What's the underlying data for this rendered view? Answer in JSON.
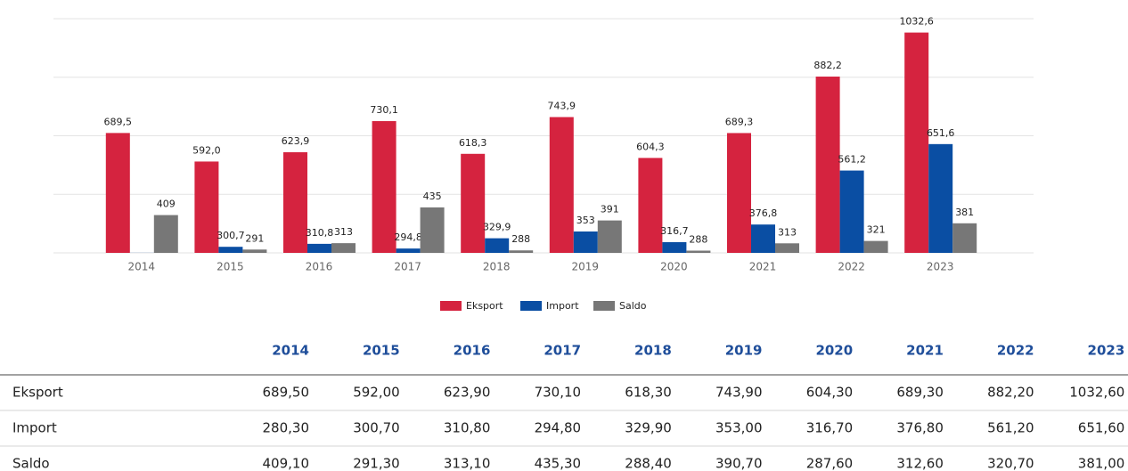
{
  "chart_data": {
    "type": "bar",
    "categories": [
      "2014",
      "2015",
      "2016",
      "2017",
      "2018",
      "2019",
      "2020",
      "2021",
      "2022",
      "2023"
    ],
    "series": [
      {
        "name": "Eksport",
        "color": "#d5233f",
        "values": [
          689.5,
          592.0,
          623.9,
          730.1,
          618.3,
          743.9,
          604.3,
          689.3,
          882.2,
          1032.6
        ],
        "value_labels": [
          "689,5",
          "592,0",
          "623,9",
          "730,1",
          "618,3",
          "743,9",
          "604,3",
          "689,3",
          "882,2",
          "1032,6"
        ]
      },
      {
        "name": "Import",
        "color": "#0a4ea3",
        "values": [
          280.3,
          300.7,
          310.8,
          294.8,
          329.9,
          353.0,
          316.7,
          376.8,
          561.2,
          651.6
        ],
        "value_labels": [
          null,
          "300,7",
          "310,8",
          "294,8",
          "329,9",
          "353",
          "316,7",
          "376,8",
          "561,2",
          "651,6"
        ]
      },
      {
        "name": "Saldo",
        "color": "#777777",
        "values": [
          409.1,
          291.3,
          313.1,
          435.3,
          288.4,
          390.7,
          287.6,
          312.6,
          320.7,
          381.0
        ],
        "value_labels": [
          "409",
          "291",
          "313",
          "435",
          "288",
          "391",
          "288",
          "313",
          "321",
          "381"
        ]
      }
    ],
    "ylim": [
      280,
      1080
    ],
    "yticks": [
      280,
      480,
      680,
      880,
      1080
    ],
    "grid": true,
    "legend": "bottom"
  },
  "table": {
    "columns": [
      "2014",
      "2015",
      "2016",
      "2017",
      "2018",
      "2019",
      "2020",
      "2021",
      "2022",
      "2023"
    ],
    "rows": [
      {
        "label": "Eksport",
        "cells": [
          "689,50",
          "592,00",
          "623,90",
          "730,10",
          "618,30",
          "743,90",
          "604,30",
          "689,30",
          "882,20",
          "1032,60"
        ]
      },
      {
        "label": "Import",
        "cells": [
          "280,30",
          "300,70",
          "310,80",
          "294,80",
          "329,90",
          "353,00",
          "316,70",
          "376,80",
          "561,20",
          "651,60"
        ]
      },
      {
        "label": "Saldo",
        "cells": [
          "409,10",
          "291,30",
          "313,10",
          "435,30",
          "288,40",
          "390,70",
          "287,60",
          "312,60",
          "320,70",
          "381,00"
        ]
      }
    ]
  }
}
